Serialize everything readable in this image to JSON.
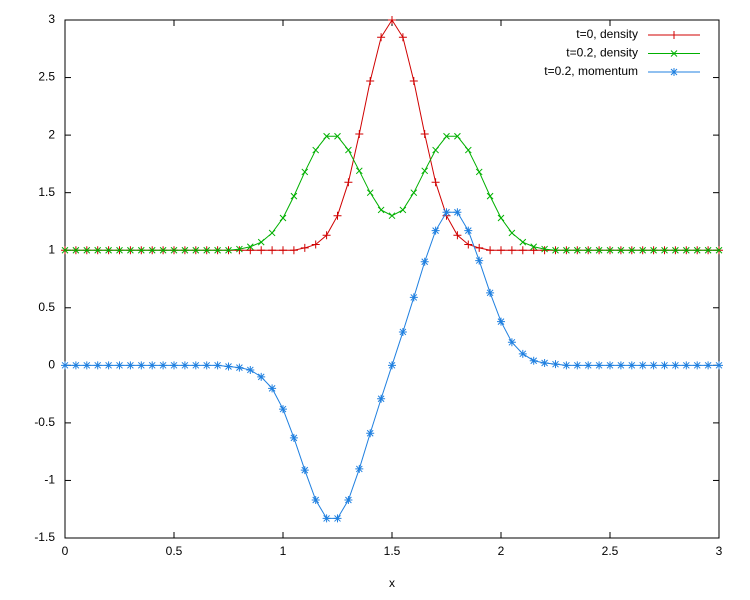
{
  "chart_data": {
    "type": "line",
    "xlabel": "x",
    "x": [
      0,
      0.05,
      0.1,
      0.15,
      0.2,
      0.25,
      0.3,
      0.35,
      0.4,
      0.45,
      0.5,
      0.55,
      0.6,
      0.65,
      0.7,
      0.75,
      0.8,
      0.85,
      0.9,
      0.95,
      1,
      1.05,
      1.1,
      1.15,
      1.2,
      1.25,
      1.3,
      1.35,
      1.4,
      1.45,
      1.5,
      1.55,
      1.6,
      1.65,
      1.7,
      1.75,
      1.8,
      1.85,
      1.9,
      1.95,
      2,
      2.05,
      2.1,
      2.15,
      2.2,
      2.25,
      2.3,
      2.35,
      2.4,
      2.45,
      2.5,
      2.55,
      2.6,
      2.65,
      2.7,
      2.75,
      2.8,
      2.85,
      2.9,
      2.95,
      3
    ],
    "series": [
      {
        "name": "t=0, density",
        "color": "#d00000",
        "marker": "plus",
        "values": [
          1,
          1,
          1,
          1,
          1,
          1,
          1,
          1,
          1,
          1,
          1,
          1,
          1,
          1,
          1,
          1,
          1,
          1,
          1,
          1,
          1,
          1,
          1.02,
          1.05,
          1.13,
          1.3,
          1.59,
          2.01,
          2.47,
          2.85,
          3,
          2.85,
          2.47,
          2.01,
          1.59,
          1.3,
          1.13,
          1.05,
          1.02,
          1,
          1,
          1,
          1,
          1,
          1,
          1,
          1,
          1,
          1,
          1,
          1,
          1,
          1,
          1,
          1,
          1,
          1,
          1,
          1,
          1,
          1
        ]
      },
      {
        "name": "t=0.2, density",
        "color": "#00b000",
        "marker": "cross",
        "values": [
          1,
          1,
          1,
          1,
          1,
          1,
          1,
          1,
          1,
          1,
          1,
          1,
          1,
          1,
          1,
          1,
          1.01,
          1.03,
          1.07,
          1.15,
          1.28,
          1.47,
          1.68,
          1.87,
          1.99,
          1.99,
          1.87,
          1.69,
          1.5,
          1.35,
          1.3,
          1.35,
          1.5,
          1.69,
          1.87,
          1.99,
          1.99,
          1.87,
          1.68,
          1.47,
          1.28,
          1.15,
          1.07,
          1.03,
          1.01,
          1,
          1,
          1,
          1,
          1,
          1,
          1,
          1,
          1,
          1,
          1,
          1,
          1,
          1,
          1,
          1
        ]
      },
      {
        "name": "t=0.2, momentum",
        "color": "#2080e0",
        "marker": "star",
        "values": [
          0,
          0,
          0,
          0,
          0,
          0,
          0,
          0,
          0,
          0,
          0,
          0,
          0,
          0,
          0,
          -0.01,
          -0.02,
          -0.04,
          -0.1,
          -0.2,
          -0.38,
          -0.63,
          -0.91,
          -1.17,
          -1.33,
          -1.33,
          -1.17,
          -0.9,
          -0.59,
          -0.29,
          0,
          0.29,
          0.59,
          0.9,
          1.17,
          1.33,
          1.33,
          1.17,
          0.91,
          0.63,
          0.38,
          0.2,
          0.1,
          0.04,
          0.02,
          0.01,
          0,
          0,
          0,
          0,
          0,
          0,
          0,
          0,
          0,
          0,
          0,
          0,
          0,
          0,
          0
        ]
      }
    ],
    "xlim": [
      0,
      3
    ],
    "xticks": [
      0,
      0.5,
      1,
      1.5,
      2,
      2.5,
      3
    ],
    "ylim": [
      -1.5,
      3
    ],
    "yticks": [
      -1.5,
      -1,
      -0.5,
      0,
      0.5,
      1,
      1.5,
      2,
      2.5,
      3
    ],
    "grid": false,
    "legend": "top-right"
  }
}
